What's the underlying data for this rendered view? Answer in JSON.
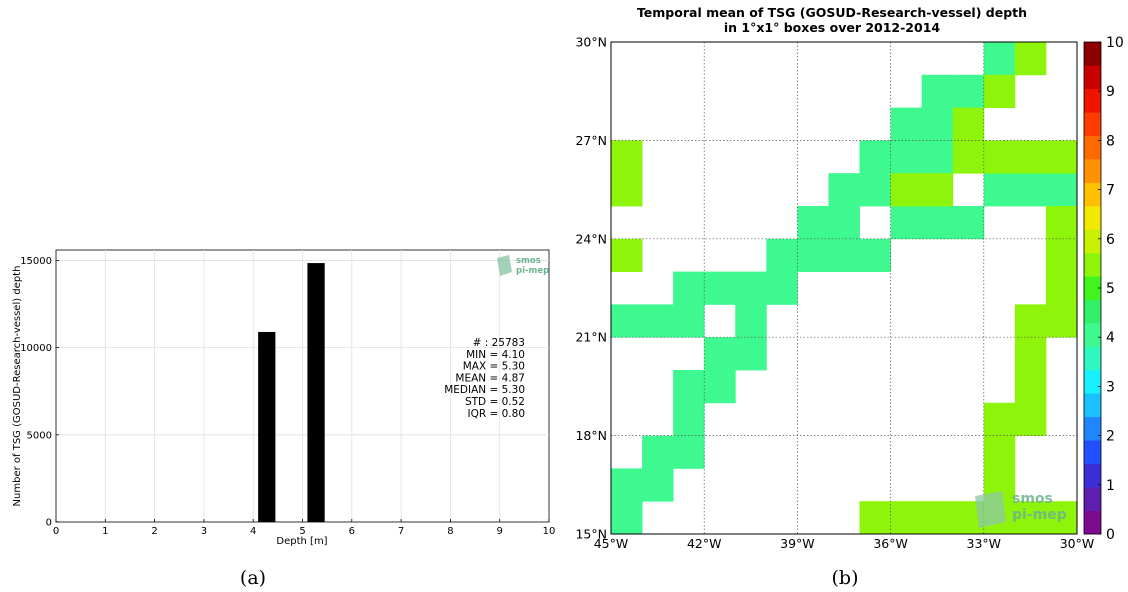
{
  "chart_data": [
    {
      "type": "bar",
      "xlabel": "Depth [m]",
      "ylabel": "Number of TSG (GOSUD-Research-vessel) depth",
      "xlim": [
        0,
        10
      ],
      "ylim": [
        0,
        15600
      ],
      "xticks": [
        "0",
        "1",
        "2",
        "3",
        "4",
        "5",
        "6",
        "7",
        "8",
        "9",
        "10"
      ],
      "yticks": [
        "0",
        "5000",
        "10000",
        "15000"
      ],
      "bars": [
        {
          "x0": 4.1,
          "x1": 4.45,
          "value": 10900
        },
        {
          "x0": 5.1,
          "x1": 5.45,
          "value": 14850
        }
      ],
      "grid": true,
      "stats": [
        "# : 25783",
        "MIN = 4.10",
        "MAX =  5.30",
        "MEAN = 4.87",
        "MEDIAN = 5.30",
        "STD = 0.52",
        "IQR = 0.80"
      ],
      "logo": {
        "line1": "smos",
        "line2": "pi-mep",
        "color": "#6db38d"
      },
      "caption": "(a)"
    },
    {
      "type": "heatmap",
      "title_lines": [
        "Temporal mean of TSG (GOSUD-Research-vessel) depth",
        "in 1°x1° boxes over 2012-2014"
      ],
      "x_range": [
        -45,
        -30
      ],
      "y_range": [
        15,
        30
      ],
      "xticks": [
        "45°W",
        "42°W",
        "39°W",
        "36°W",
        "33°W",
        "30°W"
      ],
      "yticks": [
        "15°N",
        "18°N",
        "21°N",
        "24°N",
        "27°N",
        "30°N"
      ],
      "colorbar_ticks": [
        "0",
        "1",
        "2",
        "3",
        "4",
        "5",
        "6",
        "7",
        "8",
        "9",
        "10"
      ],
      "colorbar_range": [
        0,
        10
      ],
      "colorbar_colors": [
        "#7b0b8c",
        "#5e1eb0",
        "#3c2ed6",
        "#2250ff",
        "#1f86ff",
        "#1ac0ff",
        "#17f0ff",
        "#2ef7c0",
        "#3ef98f",
        "#33f06a",
        "#3ff51d",
        "#8ef50a",
        "#c8f000",
        "#f2e800",
        "#ffc000",
        "#ff9200",
        "#ff6a00",
        "#ff3c00",
        "#f01400",
        "#c80000",
        "#8c0000"
      ],
      "grid": true,
      "cells": [
        {
          "lon": -45,
          "lat": 15,
          "value": 4.1
        },
        {
          "lon": -45,
          "lat": 16,
          "value": 4.1
        },
        {
          "lon": -44,
          "lat": 16,
          "value": 4.1
        },
        {
          "lon": -44,
          "lat": 17,
          "value": 4.1
        },
        {
          "lon": -43,
          "lat": 17,
          "value": 4.1
        },
        {
          "lon": -43,
          "lat": 18,
          "value": 4.1
        },
        {
          "lon": -43,
          "lat": 19,
          "value": 4.1
        },
        {
          "lon": -42,
          "lat": 19,
          "value": 4.1
        },
        {
          "lon": -42,
          "lat": 20,
          "value": 4.1
        },
        {
          "lon": -41,
          "lat": 20,
          "value": 4.1
        },
        {
          "lon": -41,
          "lat": 21,
          "value": 4.1
        },
        {
          "lon": -45,
          "lat": 21,
          "value": 4.1
        },
        {
          "lon": -44,
          "lat": 21,
          "value": 4.1
        },
        {
          "lon": -43,
          "lat": 21,
          "value": 4.1
        },
        {
          "lon": -43,
          "lat": 22,
          "value": 4.1
        },
        {
          "lon": -42,
          "lat": 22,
          "value": 4.1
        },
        {
          "lon": -41,
          "lat": 22,
          "value": 4.1
        },
        {
          "lon": -40,
          "lat": 22,
          "value": 4.1
        },
        {
          "lon": -40,
          "lat": 23,
          "value": 4.1
        },
        {
          "lon": -39,
          "lat": 23,
          "value": 4.1
        },
        {
          "lon": -38,
          "lat": 23,
          "value": 4.1
        },
        {
          "lon": -37,
          "lat": 23,
          "value": 4.1
        },
        {
          "lon": -39,
          "lat": 24,
          "value": 4.1
        },
        {
          "lon": -38,
          "lat": 24,
          "value": 4.1
        },
        {
          "lon": -38,
          "lat": 25,
          "value": 4.1
        },
        {
          "lon": -37,
          "lat": 25,
          "value": 4.1
        },
        {
          "lon": -36,
          "lat": 24,
          "value": 4.1
        },
        {
          "lon": -35,
          "lat": 24,
          "value": 4.1
        },
        {
          "lon": -34,
          "lat": 24,
          "value": 4.1
        },
        {
          "lon": -37,
          "lat": 26,
          "value": 4.1
        },
        {
          "lon": -36,
          "lat": 26,
          "value": 4.1
        },
        {
          "lon": -36,
          "lat": 27,
          "value": 4.1
        },
        {
          "lon": -35,
          "lat": 27,
          "value": 4.1
        },
        {
          "lon": -35,
          "lat": 26,
          "value": 4.1
        },
        {
          "lon": -35,
          "lat": 28,
          "value": 4.1
        },
        {
          "lon": -34,
          "lat": 28,
          "value": 4.1
        },
        {
          "lon": -33,
          "lat": 29,
          "value": 4.1
        },
        {
          "lon": -33,
          "lat": 25,
          "value": 4.1
        },
        {
          "lon": -32,
          "lat": 25,
          "value": 4.1
        },
        {
          "lon": -31,
          "lat": 25,
          "value": 4.1
        },
        {
          "lon": -45,
          "lat": 25,
          "value": 5.3
        },
        {
          "lon": -45,
          "lat": 26,
          "value": 5.3
        },
        {
          "lon": -45,
          "lat": 23,
          "value": 5.3
        },
        {
          "lon": -36,
          "lat": 25,
          "value": 5.3
        },
        {
          "lon": -35,
          "lat": 25,
          "value": 5.3
        },
        {
          "lon": -34,
          "lat": 26,
          "value": 5.3
        },
        {
          "lon": -34,
          "lat": 27,
          "value": 5.3
        },
        {
          "lon": -33,
          "lat": 26,
          "value": 5.3
        },
        {
          "lon": -32,
          "lat": 26,
          "value": 5.3
        },
        {
          "lon": -31,
          "lat": 26,
          "value": 5.3
        },
        {
          "lon": -33,
          "lat": 28,
          "value": 5.3
        },
        {
          "lon": -32,
          "lat": 29,
          "value": 5.3
        },
        {
          "lon": -31,
          "lat": 24,
          "value": 5.3
        },
        {
          "lon": -31,
          "lat": 23,
          "value": 5.3
        },
        {
          "lon": -31,
          "lat": 22,
          "value": 5.3
        },
        {
          "lon": -32,
          "lat": 21,
          "value": 5.3
        },
        {
          "lon": -31,
          "lat": 21,
          "value": 5.3
        },
        {
          "lon": -32,
          "lat": 20,
          "value": 5.3
        },
        {
          "lon": -32,
          "lat": 19,
          "value": 5.3
        },
        {
          "lon": -33,
          "lat": 18,
          "value": 5.3
        },
        {
          "lon": -32,
          "lat": 18,
          "value": 5.3
        },
        {
          "lon": -33,
          "lat": 17,
          "value": 5.3
        },
        {
          "lon": -33,
          "lat": 16,
          "value": 5.3
        },
        {
          "lon": -37,
          "lat": 15,
          "value": 5.3
        },
        {
          "lon": -36,
          "lat": 15,
          "value": 5.3
        },
        {
          "lon": -35,
          "lat": 15,
          "value": 5.3
        },
        {
          "lon": -34,
          "lat": 15,
          "value": 5.3
        },
        {
          "lon": -33,
          "lat": 15,
          "value": 5.3
        },
        {
          "lon": -32,
          "lat": 15,
          "value": 5.3
        },
        {
          "lon": -31,
          "lat": 15,
          "value": 5.3
        }
      ],
      "logo": {
        "line1": "smos",
        "line2": "pi-mep",
        "color": "#6db38d"
      },
      "caption": "(b)"
    }
  ]
}
